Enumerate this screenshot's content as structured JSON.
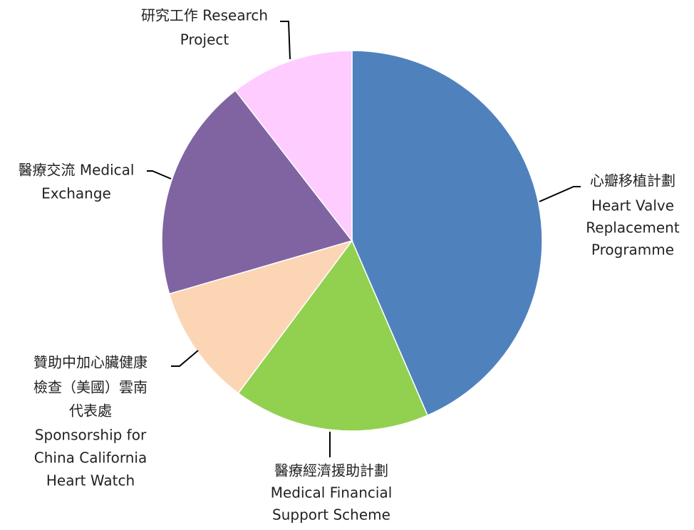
{
  "chart_data": {
    "type": "pie",
    "categories": [
      [
        "心瓣移植計劃",
        "Heart Valve",
        "Replacement",
        "Programme"
      ],
      [
        "醫療經濟援助計劃",
        "Medical Financial",
        "Support Scheme"
      ],
      [
        "贊助中加心臟健康",
        "檢查（美國）雲南",
        "代表處",
        "Sponsorship for",
        "China California",
        "Heart Watch"
      ],
      [
        "醫療交流 Medical",
        "Exchange"
      ],
      [
        "研究工作 Research",
        "Project"
      ]
    ],
    "values": [
      43.5,
      16.7,
      10.3,
      19,
      10.5
    ],
    "colors": [
      "#4f81bd",
      "#92d050",
      "#fcd5b5",
      "#8064a2",
      "#ffccff"
    ]
  }
}
